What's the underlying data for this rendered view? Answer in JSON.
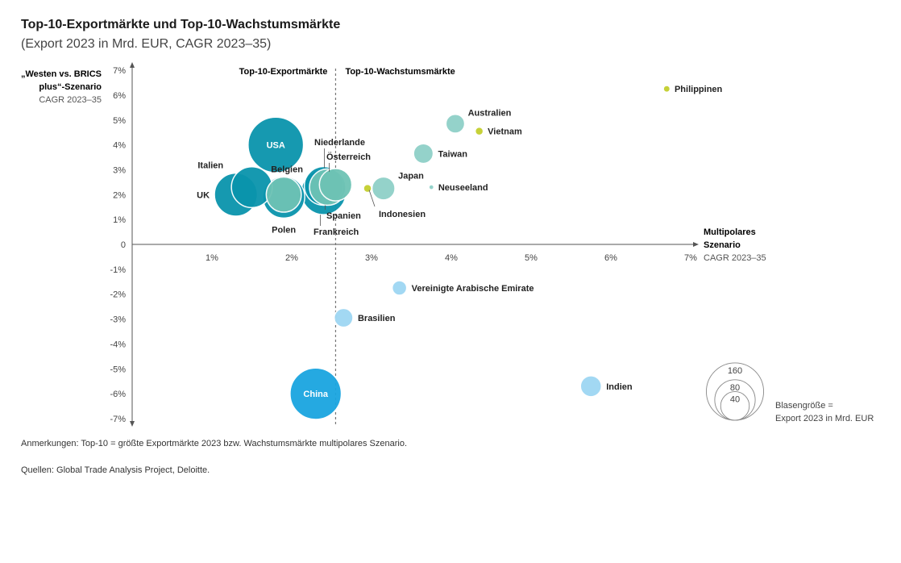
{
  "title": "Top-10-Exportmärkte und Top-10-Wachstumsmärkte",
  "subtitle": "(Export 2023 in Mrd. EUR, CAGR 2023–35)",
  "notes": {
    "annotation": "Anmerkungen: Top-10 = größte Exportmärkte 2023 bzw. Wachstumsmärkte multipolares Szenario.",
    "sources": "Quellen: Global Trade Analysis Project, Deloitte."
  },
  "chart_data": {
    "type": "scatter",
    "xlabel_lines": [
      "Multipolares",
      "Szenario"
    ],
    "xlabel_sub": "CAGR 2023–35",
    "ylabel_lines": [
      "„Westen vs. BRICS",
      "plus“-Szenario"
    ],
    "ylabel_sub": "CAGR 2023–35",
    "xlim": [
      0,
      7
    ],
    "ylim": [
      -7,
      7
    ],
    "x_ticks": [
      "1%",
      "2%",
      "3%",
      "4%",
      "5%",
      "6%",
      "7%"
    ],
    "y_ticks": [
      "7%",
      "6%",
      "5%",
      "4%",
      "3%",
      "2%",
      "1%",
      "0",
      "-1%",
      "-2%",
      "-3%",
      "-4%",
      "-5%",
      "-6%",
      "-7%"
    ],
    "divider_x": 2.55,
    "region_labels": {
      "left": "Top-10-Exportmärkte",
      "right": "Top-10-Wachstumsmärkte"
    },
    "colors": {
      "export_dark": "#0a94ac",
      "export_light": "#6ec3b5",
      "growth_light": "#8fd0c8",
      "small": "#c3cf2e",
      "negative_light": "#9ed6f3",
      "china": "#1aa5e0"
    },
    "points": [
      {
        "name": "USA",
        "x": 1.8,
        "y": 4.0,
        "size": 175,
        "color": "export_dark",
        "label_inside": true
      },
      {
        "name": "UK",
        "x": 1.3,
        "y": 2.0,
        "size": 105,
        "color": "export_dark",
        "label": "UK",
        "label_pos": "left"
      },
      {
        "name": "Italien",
        "x": 1.5,
        "y": 2.3,
        "size": 95,
        "color": "export_dark",
        "label": "Italien",
        "label_pos": "upleft"
      },
      {
        "name": "Polen",
        "x": 1.9,
        "y": 1.9,
        "size": 100,
        "color": "export_dark",
        "label": "Polen",
        "label_pos": "below"
      },
      {
        "name": "Belgien",
        "x": 1.9,
        "y": 2.0,
        "size": 70,
        "color": "export_light",
        "label": "Belgien",
        "label_pos": "above"
      },
      {
        "name": "Frankreich",
        "x": 2.4,
        "y": 2.1,
        "size": 115,
        "color": "export_dark",
        "label": "Frankreich",
        "label_pos": "below2"
      },
      {
        "name": "Spanien",
        "x": 2.45,
        "y": 2.3,
        "size": 75,
        "color": "export_light",
        "label": "Spanien",
        "label_pos": "below1"
      },
      {
        "name": "Niederlande",
        "x": 2.4,
        "y": 2.35,
        "size": 85,
        "color": "export_dark",
        "label": "Niederlande",
        "label_pos": "above2"
      },
      {
        "name": "Österreich",
        "x": 2.55,
        "y": 2.4,
        "size": 60,
        "color": "export_light",
        "label": "Österreich",
        "label_pos": "above1"
      },
      {
        "name": "China",
        "x": 2.3,
        "y": -6.0,
        "size": 150,
        "color": "china",
        "label_inside": true
      },
      {
        "name": "Indonesien",
        "x": 2.95,
        "y": 2.25,
        "size": 3,
        "color": "small",
        "label": "Indonesien",
        "label_pos": "leader"
      },
      {
        "name": "Japan",
        "x": 3.15,
        "y": 2.25,
        "size": 30,
        "color": "growth_light",
        "label": "Japan",
        "label_pos": "upright"
      },
      {
        "name": "Taiwan",
        "x": 3.65,
        "y": 3.65,
        "size": 22,
        "color": "growth_light",
        "label": "Taiwan",
        "label_pos": "right"
      },
      {
        "name": "Australien",
        "x": 4.05,
        "y": 4.85,
        "size": 20,
        "color": "growth_light",
        "label": "Australien",
        "label_pos": "upright"
      },
      {
        "name": "Vietnam",
        "x": 4.35,
        "y": 4.55,
        "size": 3,
        "color": "small",
        "label": "Vietnam",
        "label_pos": "right"
      },
      {
        "name": "Neuseeland",
        "x": 3.75,
        "y": 2.3,
        "size": 1,
        "color": "growth_light",
        "label": "Neuseeland",
        "label_pos": "right"
      },
      {
        "name": "Philippinen",
        "x": 6.7,
        "y": 6.25,
        "size": 2,
        "color": "small",
        "label": "Philippinen",
        "label_pos": "right"
      },
      {
        "name": "Vereinigte Arabische Emirate",
        "x": 3.35,
        "y": -1.75,
        "size": 12,
        "color": "negative_light",
        "label": "Vereinigte Arabische Emirate",
        "label_pos": "right"
      },
      {
        "name": "Brasilien",
        "x": 2.65,
        "y": -2.95,
        "size": 20,
        "color": "negative_light",
        "label": "Brasilien",
        "label_pos": "right"
      },
      {
        "name": "Indien",
        "x": 5.75,
        "y": -5.7,
        "size": 25,
        "color": "negative_light",
        "label": "Indien",
        "label_pos": "right"
      }
    ],
    "size_legend": {
      "values": [
        160,
        80,
        40
      ],
      "caption_lines": [
        "Blasengröße =",
        "Export 2023 in Mrd. EUR"
      ]
    }
  }
}
